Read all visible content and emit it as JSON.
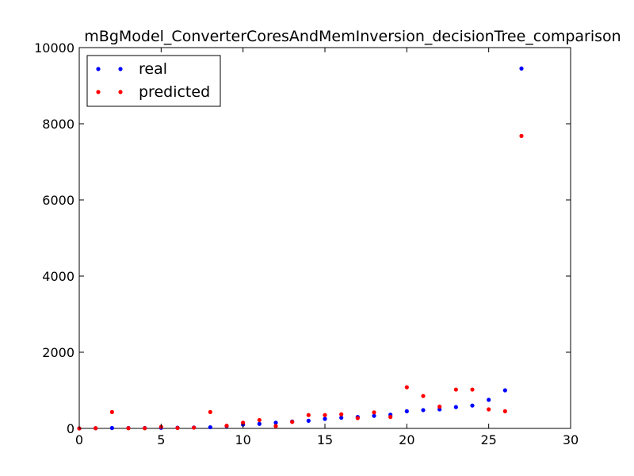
{
  "chart_data": {
    "type": "scatter",
    "title": "mBgModel_ConverterCoresAndMemInversion_decisionTree_comparison",
    "xlabel": "",
    "ylabel": "",
    "xlim": [
      0,
      30
    ],
    "ylim": [
      0,
      10000
    ],
    "xticks": [
      0,
      5,
      10,
      15,
      20,
      25,
      30
    ],
    "yticks": [
      0,
      2000,
      4000,
      6000,
      8000,
      10000
    ],
    "grid": false,
    "legend_placement": "top-left",
    "series": [
      {
        "name": "real",
        "color": "#0000ff",
        "x": [
          0,
          1,
          2,
          3,
          4,
          5,
          6,
          7,
          8,
          9,
          10,
          11,
          12,
          13,
          14,
          15,
          16,
          17,
          18,
          19,
          20,
          21,
          22,
          23,
          24,
          25,
          26,
          27
        ],
        "y": [
          0,
          5,
          10,
          10,
          10,
          15,
          20,
          25,
          30,
          60,
          100,
          120,
          150,
          180,
          200,
          250,
          280,
          300,
          330,
          360,
          450,
          480,
          500,
          560,
          600,
          750,
          1000,
          9450
        ]
      },
      {
        "name": "predicted",
        "color": "#ff0000",
        "x": [
          0,
          1,
          2,
          3,
          4,
          5,
          6,
          7,
          8,
          9,
          10,
          11,
          12,
          13,
          14,
          15,
          16,
          17,
          18,
          19,
          20,
          21,
          22,
          23,
          24,
          25,
          26,
          27
        ],
        "y": [
          0,
          5,
          430,
          5,
          5,
          40,
          10,
          20,
          430,
          70,
          150,
          220,
          60,
          170,
          350,
          350,
          370,
          270,
          420,
          300,
          1080,
          850,
          570,
          1020,
          1020,
          500,
          450,
          7680
        ]
      }
    ]
  }
}
